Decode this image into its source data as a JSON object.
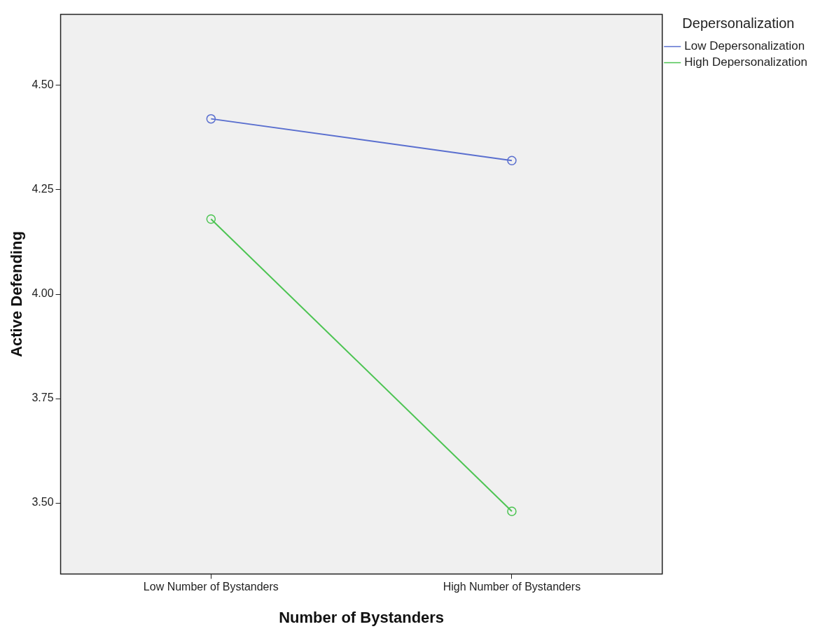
{
  "chart_data": {
    "type": "line",
    "xlabel": "Number of Bystanders",
    "ylabel": "Active Defending",
    "legend_title": "Depersonalization",
    "categories": [
      "Low Number of Bystanders",
      "High Number of Bystanders"
    ],
    "series": [
      {
        "name": "Low Depersonalization",
        "color": "#5a6fcf",
        "values": [
          4.42,
          4.32
        ]
      },
      {
        "name": "High Depersonalization",
        "color": "#4cc452",
        "values": [
          4.18,
          3.48
        ]
      }
    ],
    "ylim": [
      3.33,
      4.67
    ],
    "yticks": [
      {
        "value": 3.5,
        "label": "3.50"
      },
      {
        "value": 3.75,
        "label": "3.75"
      },
      {
        "value": 4,
        "label": "4.00"
      },
      {
        "value": 4.25,
        "label": "4.25"
      },
      {
        "value": 4.5,
        "label": "4.50"
      }
    ],
    "grid": false,
    "legend": "top right",
    "marker": "circle",
    "line_style": "solid"
  }
}
